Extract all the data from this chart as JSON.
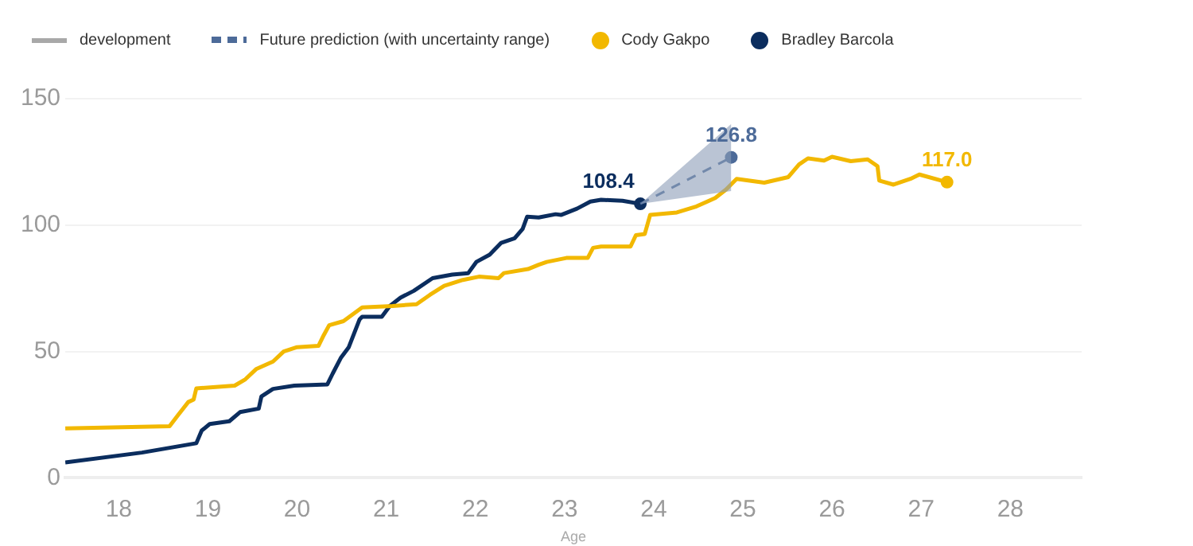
{
  "chart_data": {
    "type": "line",
    "xlabel": "Age",
    "xlim": [
      17.4,
      28.8
    ],
    "xticks": [
      18,
      19,
      20,
      21,
      22,
      23,
      24,
      25,
      26,
      27,
      28
    ],
    "ylim": [
      0,
      150
    ],
    "yticks": [
      0,
      50,
      100,
      150
    ],
    "grid": "y",
    "legend": "top left",
    "annotations": [
      "development"
    ],
    "series": [
      {
        "name": "Future prediction (with uncertainty range)",
        "color": "#4d6b99",
        "line_style": "dashed",
        "x": [
          23.85,
          24.87
        ],
        "values": [
          108.4,
          126.8
        ],
        "lower": [
          108.4,
          113.5
        ],
        "upper": [
          108.4,
          140
        ],
        "value_labels": [
          null,
          "126.8"
        ]
      },
      {
        "name": "Cody Gakpo",
        "color": "#f2b800",
        "x": [
          17.4,
          18.57,
          18.66,
          18.78,
          18.84,
          18.87,
          19.3,
          19.42,
          19.54,
          19.73,
          19.85,
          20.0,
          20.24,
          20.3,
          20.36,
          20.52,
          20.73,
          21.07,
          21.34,
          21.49,
          21.65,
          21.86,
          22.04,
          22.26,
          22.32,
          22.59,
          22.71,
          22.8,
          23.02,
          23.26,
          23.32,
          23.41,
          23.74,
          23.8,
          23.9,
          23.96,
          24.26,
          24.48,
          24.69,
          24.81,
          24.93,
          25.24,
          25.51,
          25.63,
          25.73,
          25.91,
          26.0,
          26.21,
          26.4,
          26.51,
          26.53,
          26.69,
          26.88,
          26.98,
          27.29
        ],
        "values": [
          19.6,
          20.4,
          24.6,
          30,
          31,
          35.4,
          36.5,
          39,
          43,
          46,
          50,
          51.7,
          52.2,
          56.5,
          60.4,
          62,
          67.4,
          68,
          68.7,
          72.4,
          76,
          78.3,
          79.6,
          79,
          81,
          82.6,
          84.3,
          85.4,
          87,
          87,
          91,
          91.5,
          91.5,
          96,
          96.5,
          104,
          105,
          107.4,
          110.7,
          114,
          118.3,
          116.8,
          119,
          124,
          126.4,
          125.5,
          127,
          125.3,
          126,
          123.3,
          117.6,
          116,
          118.3,
          120,
          117.0
        ],
        "value_labels": [
          null,
          null,
          null,
          null,
          null,
          null,
          null,
          null,
          null,
          null,
          null,
          null,
          null,
          null,
          null,
          null,
          null,
          null,
          null,
          null,
          null,
          null,
          null,
          null,
          null,
          null,
          null,
          null,
          null,
          null,
          null,
          null,
          null,
          null,
          null,
          null,
          null,
          null,
          null,
          null,
          null,
          null,
          null,
          null,
          null,
          null,
          null,
          null,
          null,
          null,
          null,
          null,
          null,
          null,
          "117.0"
        ]
      },
      {
        "name": "Bradley Barcola",
        "color": "#0b2d5e",
        "x": [
          17.4,
          18.26,
          18.87,
          18.93,
          19.02,
          19.24,
          19.36,
          19.57,
          19.6,
          19.73,
          19.97,
          20.34,
          20.4,
          20.49,
          20.58,
          20.7,
          20.73,
          20.95,
          21.04,
          21.16,
          21.31,
          21.52,
          21.74,
          21.92,
          22.01,
          22.16,
          22.29,
          22.44,
          22.53,
          22.58,
          22.71,
          22.9,
          22.96,
          23.14,
          23.29,
          23.41,
          23.65,
          23.85
        ],
        "values": [
          6.1,
          10,
          13.7,
          18.7,
          21.3,
          22.4,
          26,
          27.4,
          32.2,
          35.2,
          36.5,
          37,
          41.3,
          47.4,
          51.7,
          62.6,
          63.7,
          63.7,
          68,
          71.3,
          74,
          79,
          80.4,
          81,
          85.4,
          88.3,
          93,
          94.8,
          98.5,
          103.3,
          103,
          104.3,
          104,
          106.5,
          109.3,
          110,
          109.6,
          108.4
        ],
        "value_labels": [
          null,
          null,
          null,
          null,
          null,
          null,
          null,
          null,
          null,
          null,
          null,
          null,
          null,
          null,
          null,
          null,
          null,
          null,
          null,
          null,
          null,
          null,
          null,
          null,
          null,
          null,
          null,
          null,
          null,
          null,
          null,
          null,
          null,
          null,
          null,
          null,
          null,
          "108.4"
        ]
      }
    ]
  }
}
